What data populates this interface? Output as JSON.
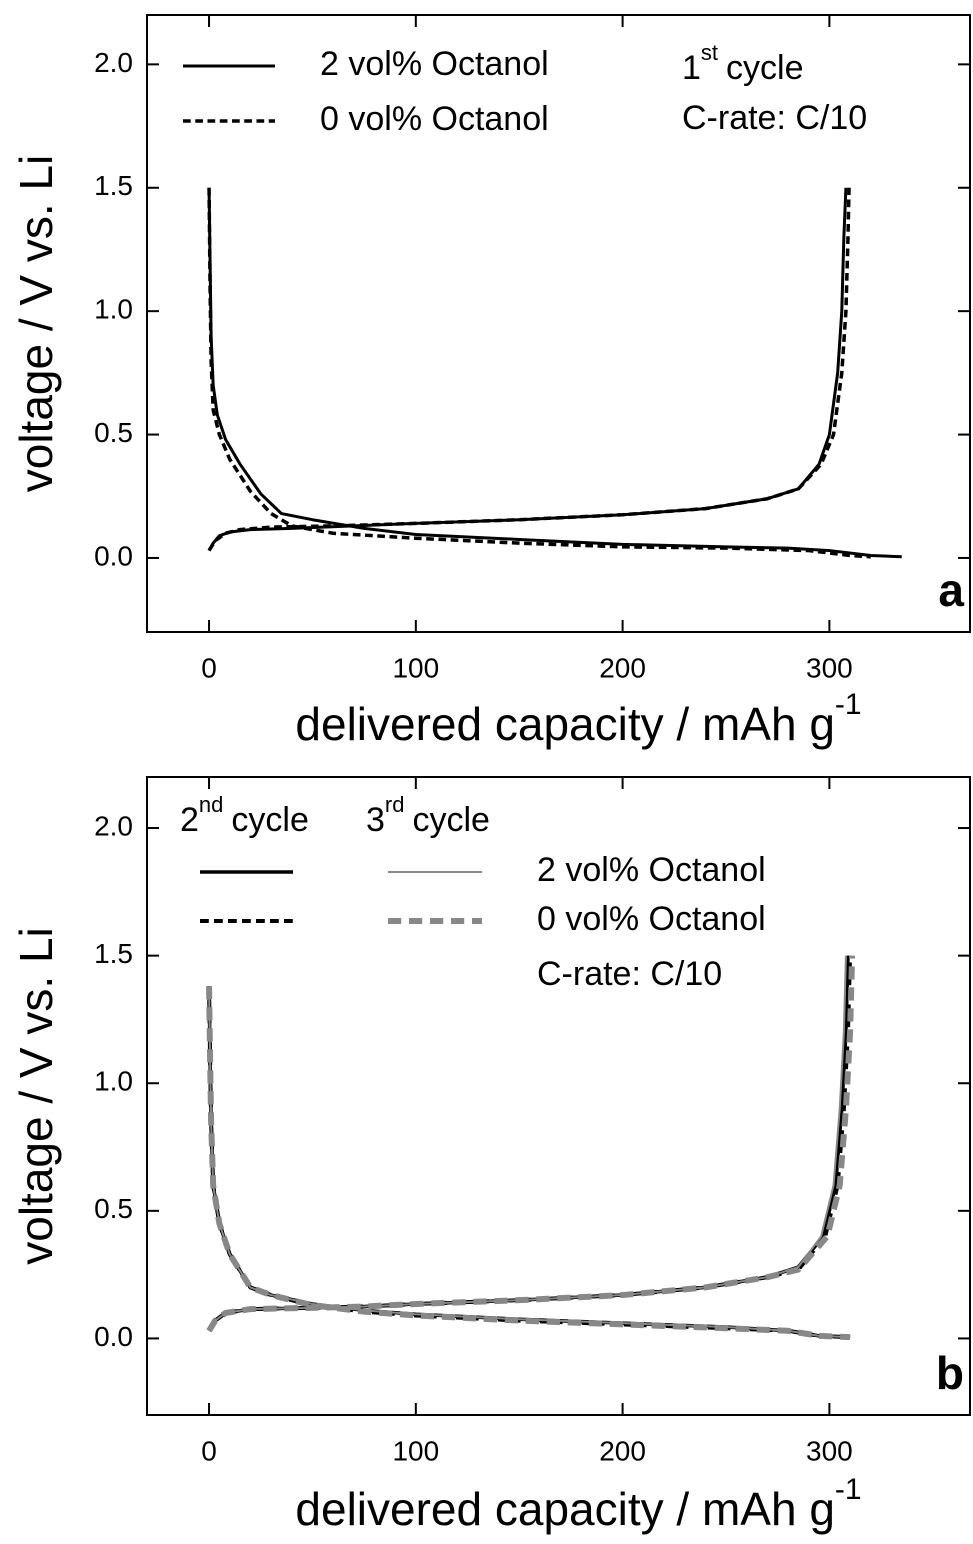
{
  "chart_data": [
    {
      "type": "line",
      "panel_label": "a",
      "xlabel": {
        "text": "delivered capacity / mAh g",
        "sup": "-1"
      },
      "ylabel": "voltage / V vs. Li",
      "cycle": {
        "number": "1",
        "suffix": "st",
        "text": "cycle"
      },
      "rate": "C-rate: C/10",
      "xlim": [
        -30,
        368
      ],
      "xticks": [
        0,
        100,
        200,
        300
      ],
      "ylim": [
        -0.3,
        2.2
      ],
      "yticks": [
        {
          "value": 0,
          "label": "0.0"
        },
        {
          "value": 0.5,
          "label": "0.5"
        },
        {
          "value": 1,
          "label": "1.0"
        },
        {
          "value": 1.5,
          "label": "1.5"
        },
        {
          "value": 2,
          "label": "2.0"
        }
      ],
      "series": [
        {
          "name": "2 vol% Octanol",
          "color": "#000000",
          "dash": false,
          "width": 3,
          "x": [
            0,
            0.5,
            1,
            2,
            4,
            8,
            15,
            25,
            35,
            50,
            75,
            100,
            150,
            200,
            250,
            280,
            300,
            320,
            335,
            null,
            0,
            2,
            5,
            10,
            20,
            40,
            70,
            100,
            150,
            200,
            240,
            270,
            285,
            295,
            300,
            304,
            306,
            307,
            308
          ],
          "values": [
            1.5,
            1.2,
            0.9,
            0.7,
            0.58,
            0.48,
            0.38,
            0.26,
            0.18,
            0.155,
            0.12,
            0.095,
            0.075,
            0.055,
            0.045,
            0.04,
            0.03,
            0.01,
            0.005,
            null,
            0.03,
            0.06,
            0.09,
            0.105,
            0.115,
            0.12,
            0.13,
            0.14,
            0.155,
            0.175,
            0.2,
            0.24,
            0.28,
            0.38,
            0.5,
            0.75,
            1.0,
            1.3,
            1.5
          ]
        },
        {
          "name": "0 vol% Octanol",
          "color": "#000000",
          "dash": true,
          "width": 3.5,
          "x": [
            0,
            0.5,
            1,
            2,
            5,
            10,
            20,
            30,
            40,
            60,
            100,
            150,
            200,
            250,
            290,
            310,
            320,
            null,
            0,
            3,
            8,
            15,
            30,
            60,
            100,
            150,
            200,
            240,
            270,
            285,
            296,
            302,
            306,
            308,
            309,
            309.5
          ],
          "values": [
            1.5,
            1.1,
            0.8,
            0.6,
            0.5,
            0.4,
            0.27,
            0.18,
            0.13,
            0.1,
            0.08,
            0.06,
            0.045,
            0.04,
            0.03,
            0.01,
            0.005,
            null,
            0.03,
            0.07,
            0.1,
            0.115,
            0.125,
            0.13,
            0.14,
            0.155,
            0.175,
            0.2,
            0.24,
            0.28,
            0.38,
            0.5,
            0.75,
            1.0,
            1.3,
            1.5
          ]
        }
      ]
    },
    {
      "type": "line",
      "panel_label": "b",
      "xlabel": {
        "text": "delivered capacity / mAh g",
        "sup": "-1"
      },
      "ylabel": "voltage / V vs. Li",
      "cycles": [
        {
          "number": "2",
          "suffix": "nd",
          "text": "cycle"
        },
        {
          "number": "3",
          "suffix": "rd",
          "text": "cycle"
        }
      ],
      "rate": "C-rate: C/10",
      "xlim": [
        -30,
        368
      ],
      "xticks": [
        0,
        100,
        200,
        300
      ],
      "ylim": [
        -0.3,
        2.2
      ],
      "yticks": [
        {
          "value": 0,
          "label": "0.0"
        },
        {
          "value": 0.5,
          "label": "0.5"
        },
        {
          "value": 1,
          "label": "1.0"
        },
        {
          "value": 1.5,
          "label": "1.5"
        },
        {
          "value": 2,
          "label": "2.0"
        }
      ],
      "series": [
        {
          "name": "2 vol% Octanol",
          "color": "#000000",
          "dash": false,
          "width": 3.5,
          "x": [
            0,
            0.5,
            1,
            2,
            5,
            10,
            20,
            30,
            50,
            75,
            100,
            150,
            200,
            250,
            280,
            295,
            310,
            null,
            0,
            3,
            8,
            20,
            50,
            75,
            100,
            150,
            200,
            240,
            270,
            285,
            297,
            303,
            306,
            308,
            309
          ],
          "values": [
            1.38,
            1.1,
            0.85,
            0.6,
            0.45,
            0.33,
            0.2,
            0.17,
            0.135,
            0.11,
            0.095,
            0.075,
            0.06,
            0.045,
            0.03,
            0.01,
            0.005,
            null,
            0.03,
            0.07,
            0.1,
            0.115,
            0.12,
            0.125,
            0.135,
            0.15,
            0.17,
            0.2,
            0.24,
            0.28,
            0.4,
            0.6,
            0.9,
            1.2,
            1.5
          ]
        },
        {
          "name": "0 vol% Octanol",
          "color": "#000000",
          "dash": true,
          "width": 4,
          "x": [
            0,
            0.5,
            1,
            2,
            5,
            10,
            20,
            30,
            50,
            75,
            100,
            150,
            200,
            250,
            280,
            295,
            310,
            null,
            0,
            3,
            8,
            20,
            50,
            75,
            100,
            150,
            200,
            240,
            270,
            285,
            298,
            304,
            307,
            309,
            310
          ],
          "values": [
            1.38,
            1.1,
            0.85,
            0.6,
            0.45,
            0.33,
            0.2,
            0.17,
            0.13,
            0.105,
            0.09,
            0.07,
            0.055,
            0.04,
            0.03,
            0.01,
            0.005,
            null,
            0.03,
            0.07,
            0.1,
            0.115,
            0.12,
            0.125,
            0.135,
            0.15,
            0.17,
            0.2,
            0.24,
            0.27,
            0.4,
            0.6,
            0.9,
            1.2,
            1.5
          ]
        },
        {
          "color": "#888888",
          "dash": false,
          "width": 2,
          "x": [
            0,
            0.5,
            1,
            2,
            5,
            10,
            20,
            30,
            50,
            75,
            100,
            150,
            200,
            250,
            280,
            295,
            310,
            null,
            0,
            3,
            8,
            20,
            50,
            75,
            100,
            150,
            200,
            240,
            270,
            285,
            296,
            302,
            305,
            307,
            308
          ],
          "values": [
            1.38,
            1.1,
            0.85,
            0.6,
            0.45,
            0.33,
            0.2,
            0.17,
            0.135,
            0.11,
            0.095,
            0.075,
            0.06,
            0.045,
            0.03,
            0.01,
            0.005,
            null,
            0.03,
            0.07,
            0.1,
            0.115,
            0.12,
            0.125,
            0.135,
            0.15,
            0.17,
            0.2,
            0.24,
            0.28,
            0.4,
            0.6,
            0.9,
            1.2,
            1.5
          ]
        },
        {
          "color": "#888888",
          "dash": true,
          "width": 6,
          "x": [
            0,
            0.5,
            1,
            2,
            5,
            10,
            20,
            30,
            50,
            75,
            100,
            150,
            200,
            250,
            280,
            295,
            310,
            null,
            0,
            3,
            8,
            20,
            50,
            75,
            100,
            150,
            200,
            240,
            270,
            285,
            299,
            305,
            308,
            310,
            311
          ],
          "values": [
            1.38,
            1.1,
            0.85,
            0.6,
            0.45,
            0.33,
            0.2,
            0.17,
            0.13,
            0.105,
            0.09,
            0.07,
            0.055,
            0.04,
            0.03,
            0.01,
            0.005,
            null,
            0.03,
            0.07,
            0.1,
            0.115,
            0.12,
            0.125,
            0.135,
            0.15,
            0.17,
            0.2,
            0.24,
            0.27,
            0.4,
            0.6,
            0.9,
            1.2,
            1.5
          ]
        }
      ]
    }
  ]
}
